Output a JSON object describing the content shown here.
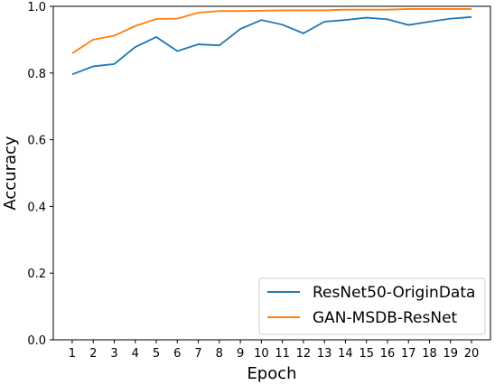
{
  "chart_data": {
    "type": "line",
    "title": "",
    "xlabel": "Epoch",
    "ylabel": "Accuracy",
    "x": [
      1,
      2,
      3,
      4,
      5,
      6,
      7,
      8,
      9,
      10,
      11,
      12,
      13,
      14,
      15,
      16,
      17,
      18,
      19,
      20
    ],
    "xticks": [
      "1",
      "2",
      "3",
      "4",
      "5",
      "6",
      "7",
      "8",
      "9",
      "10",
      "11",
      "12",
      "13",
      "14",
      "15",
      "16",
      "17",
      "18",
      "19",
      "20"
    ],
    "ylim": [
      0.0,
      1.0
    ],
    "yticks": [
      "0.0",
      "0.2",
      "0.4",
      "0.6",
      "0.8",
      "1.0"
    ],
    "yticks_values": [
      0.0,
      0.2,
      0.4,
      0.6,
      0.8,
      1.0
    ],
    "grid": false,
    "legend_position": "bottom-right",
    "series": [
      {
        "name": "ResNet50-OriginData",
        "color": "#1f77b4",
        "values": [
          0.796,
          0.82,
          0.827,
          0.878,
          0.908,
          0.866,
          0.886,
          0.883,
          0.932,
          0.959,
          0.945,
          0.919,
          0.954,
          0.959,
          0.966,
          0.961,
          0.944,
          0.954,
          0.963,
          0.968
        ]
      },
      {
        "name": "GAN-MSDB-ResNet",
        "color": "#ff7f0e",
        "values": [
          0.859,
          0.9,
          0.912,
          0.941,
          0.962,
          0.963,
          0.981,
          0.986,
          0.986,
          0.987,
          0.988,
          0.988,
          0.988,
          0.99,
          0.99,
          0.99,
          0.992,
          0.992,
          0.992,
          0.992
        ]
      }
    ]
  }
}
